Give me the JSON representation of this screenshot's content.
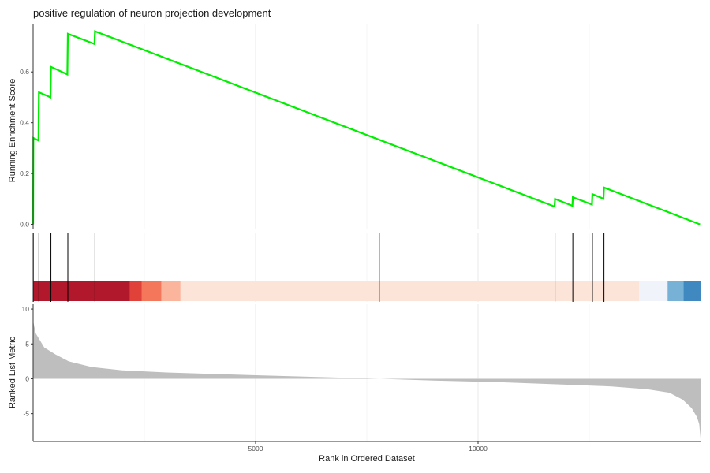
{
  "chart_data": {
    "type": "line",
    "title": "positive regulation of neuron projection development",
    "xlabel": "Rank in Ordered Dataset",
    "x_range": [
      0,
      15000
    ],
    "x_ticks": [
      5000,
      10000
    ],
    "x_tick_labels": [
      "5000",
      "10000"
    ],
    "grid": "vertical lines only",
    "panels": {
      "enrichment": {
        "ylabel": "Running Enrichment Score",
        "ylim": [
          -0.02,
          0.79
        ],
        "y_ticks": [
          0.0,
          0.2,
          0.4,
          0.6
        ],
        "y_tick_labels": [
          "0.0",
          "0.2",
          "0.4",
          "0.6"
        ],
        "series": [
          {
            "color": "#00ee00",
            "points": [
              [
                0,
                0
              ],
              [
                5,
                0.34
              ],
              [
                120,
                0.33
              ],
              [
                130,
                0.52
              ],
              [
                390,
                0.5
              ],
              [
                400,
                0.62
              ],
              [
                770,
                0.59
              ],
              [
                780,
                0.75
              ],
              [
                1380,
                0.71
              ],
              [
                1390,
                0.76
              ],
              [
                7780,
                0.333
              ],
              [
                11720,
                0.07
              ],
              [
                11730,
                0.1
              ],
              [
                12120,
                0.073
              ],
              [
                12130,
                0.107
              ],
              [
                12560,
                0.078
              ],
              [
                12570,
                0.119
              ],
              [
                12820,
                0.101
              ],
              [
                12830,
                0.145
              ],
              [
                14990,
                0.0
              ]
            ]
          }
        ]
      },
      "hits": {
        "gene_ranks": [
          5,
          130,
          400,
          780,
          1390,
          7780,
          11730,
          12130,
          12570,
          12830
        ]
      },
      "color_bar": {
        "segments": [
          {
            "from": 0,
            "to": 2170,
            "color": "#b2182b"
          },
          {
            "from": 2170,
            "to": 2440,
            "color": "#e0423a"
          },
          {
            "from": 2440,
            "to": 2880,
            "color": "#f4775c"
          },
          {
            "from": 2880,
            "to": 3310,
            "color": "#fbb59c"
          },
          {
            "from": 3310,
            "to": 13620,
            "color": "#fde4d8"
          },
          {
            "from": 13620,
            "to": 14260,
            "color": "#f0f4fa"
          },
          {
            "from": 14260,
            "to": 14620,
            "color": "#78b1d6"
          },
          {
            "from": 14620,
            "to": 15000,
            "color": "#4088c0"
          }
        ]
      },
      "ranked_metric": {
        "ylabel": "Ranked List Metric",
        "ylim": [
          -9,
          10.8
        ],
        "y_ticks": [
          -5,
          0,
          5,
          10
        ],
        "y_tick_labels": [
          "-5",
          "0",
          "5",
          "10"
        ],
        "fill_color": "#bebebe",
        "curve": [
          [
            0,
            8.3
          ],
          [
            60,
            6.5
          ],
          [
            250,
            4.5
          ],
          [
            500,
            3.5
          ],
          [
            800,
            2.5
          ],
          [
            1300,
            1.7
          ],
          [
            2000,
            1.2
          ],
          [
            3000,
            0.9
          ],
          [
            5000,
            0.5
          ],
          [
            7500,
            0.05
          ],
          [
            9000,
            -0.25
          ],
          [
            10500,
            -0.5
          ],
          [
            12000,
            -0.85
          ],
          [
            13000,
            -1.1
          ],
          [
            13800,
            -1.5
          ],
          [
            14300,
            -2.0
          ],
          [
            14600,
            -3.0
          ],
          [
            14800,
            -4.2
          ],
          [
            14920,
            -5.5
          ],
          [
            14970,
            -6.5
          ],
          [
            15000,
            -8.5
          ]
        ]
      }
    }
  }
}
